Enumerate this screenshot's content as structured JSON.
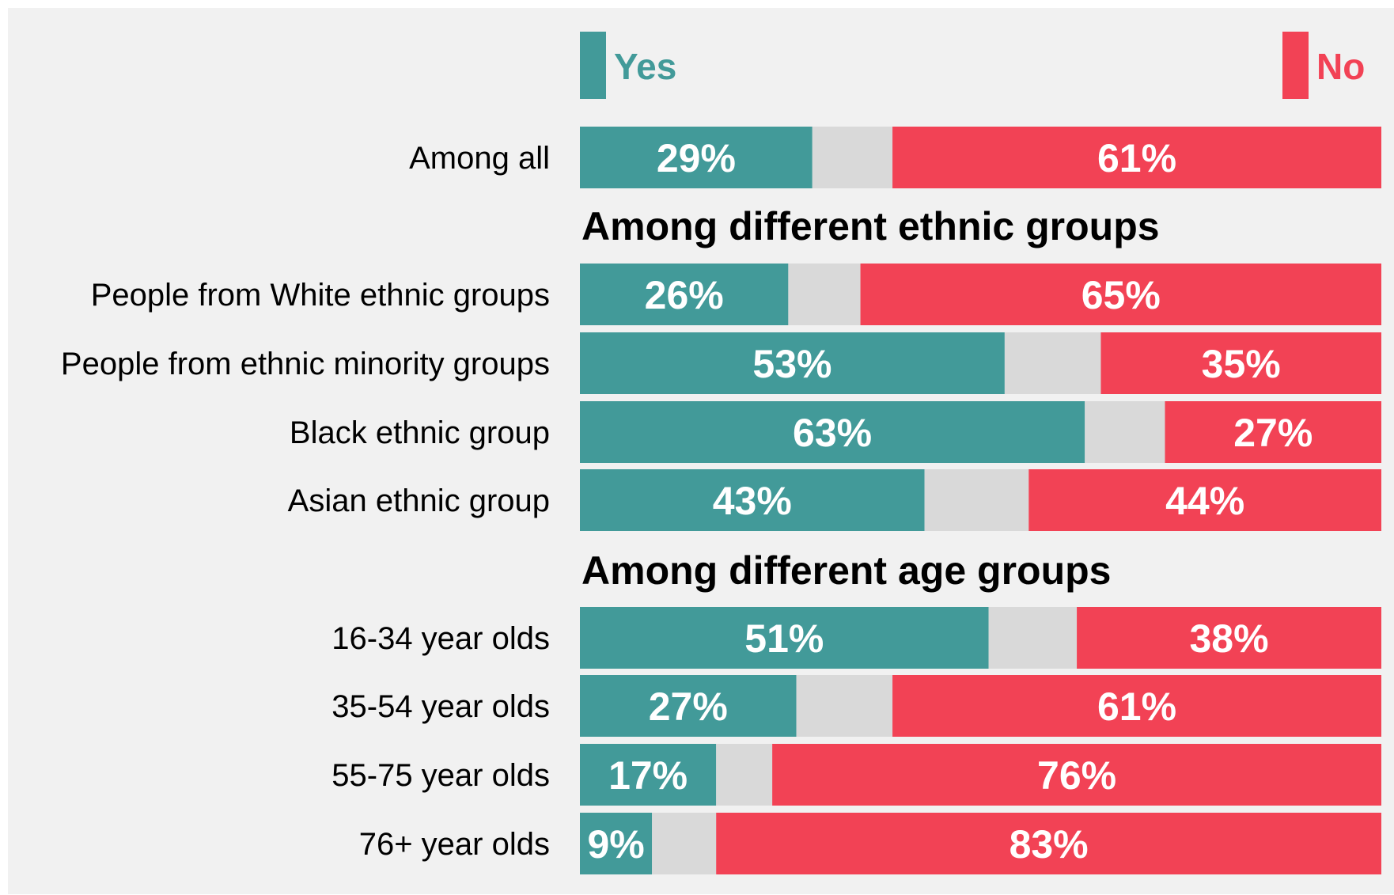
{
  "colors": {
    "background": "#f1f1f1",
    "yes": "#429a99",
    "no": "#f24255",
    "neither": "#d9d9d9"
  },
  "legend": {
    "yes_label": "Yes",
    "no_label": "No"
  },
  "chart_data": {
    "type": "bar",
    "stacked": true,
    "orientation": "horizontal",
    "xlim": [
      0,
      100
    ],
    "series": [
      {
        "name": "Yes",
        "color": "#429a99"
      },
      {
        "name": "No",
        "color": "#f24255"
      }
    ],
    "rows": [
      {
        "kind": "bar",
        "label": "Among all",
        "yes": 29,
        "no": 61,
        "yes_label": "29%",
        "no_label": "61%"
      },
      {
        "kind": "section",
        "label": "Among different ethnic groups"
      },
      {
        "kind": "bar",
        "label": "People from White ethnic groups",
        "yes": 26,
        "no": 65,
        "yes_label": "26%",
        "no_label": "65%"
      },
      {
        "kind": "bar",
        "label": "People from ethnic minority groups",
        "yes": 53,
        "no": 35,
        "yes_label": "53%",
        "no_label": "35%"
      },
      {
        "kind": "bar",
        "label": "Black ethnic group",
        "yes": 63,
        "no": 27,
        "yes_label": "63%",
        "no_label": "27%"
      },
      {
        "kind": "bar",
        "label": "Asian ethnic group",
        "yes": 43,
        "no": 44,
        "yes_label": "43%",
        "no_label": "44%"
      },
      {
        "kind": "section",
        "label": "Among different age groups"
      },
      {
        "kind": "bar",
        "label": "16-34 year olds",
        "yes": 51,
        "no": 38,
        "yes_label": "51%",
        "no_label": "38%"
      },
      {
        "kind": "bar",
        "label": "35-54 year olds",
        "yes": 27,
        "no": 61,
        "yes_label": "27%",
        "no_label": "61%"
      },
      {
        "kind": "bar",
        "label": "55-75 year olds",
        "yes": 17,
        "no": 76,
        "yes_label": "17%",
        "no_label": "76%"
      },
      {
        "kind": "bar",
        "label": "76+ year olds",
        "yes": 9,
        "no": 83,
        "yes_label": "9%",
        "no_label": "83%"
      }
    ]
  }
}
